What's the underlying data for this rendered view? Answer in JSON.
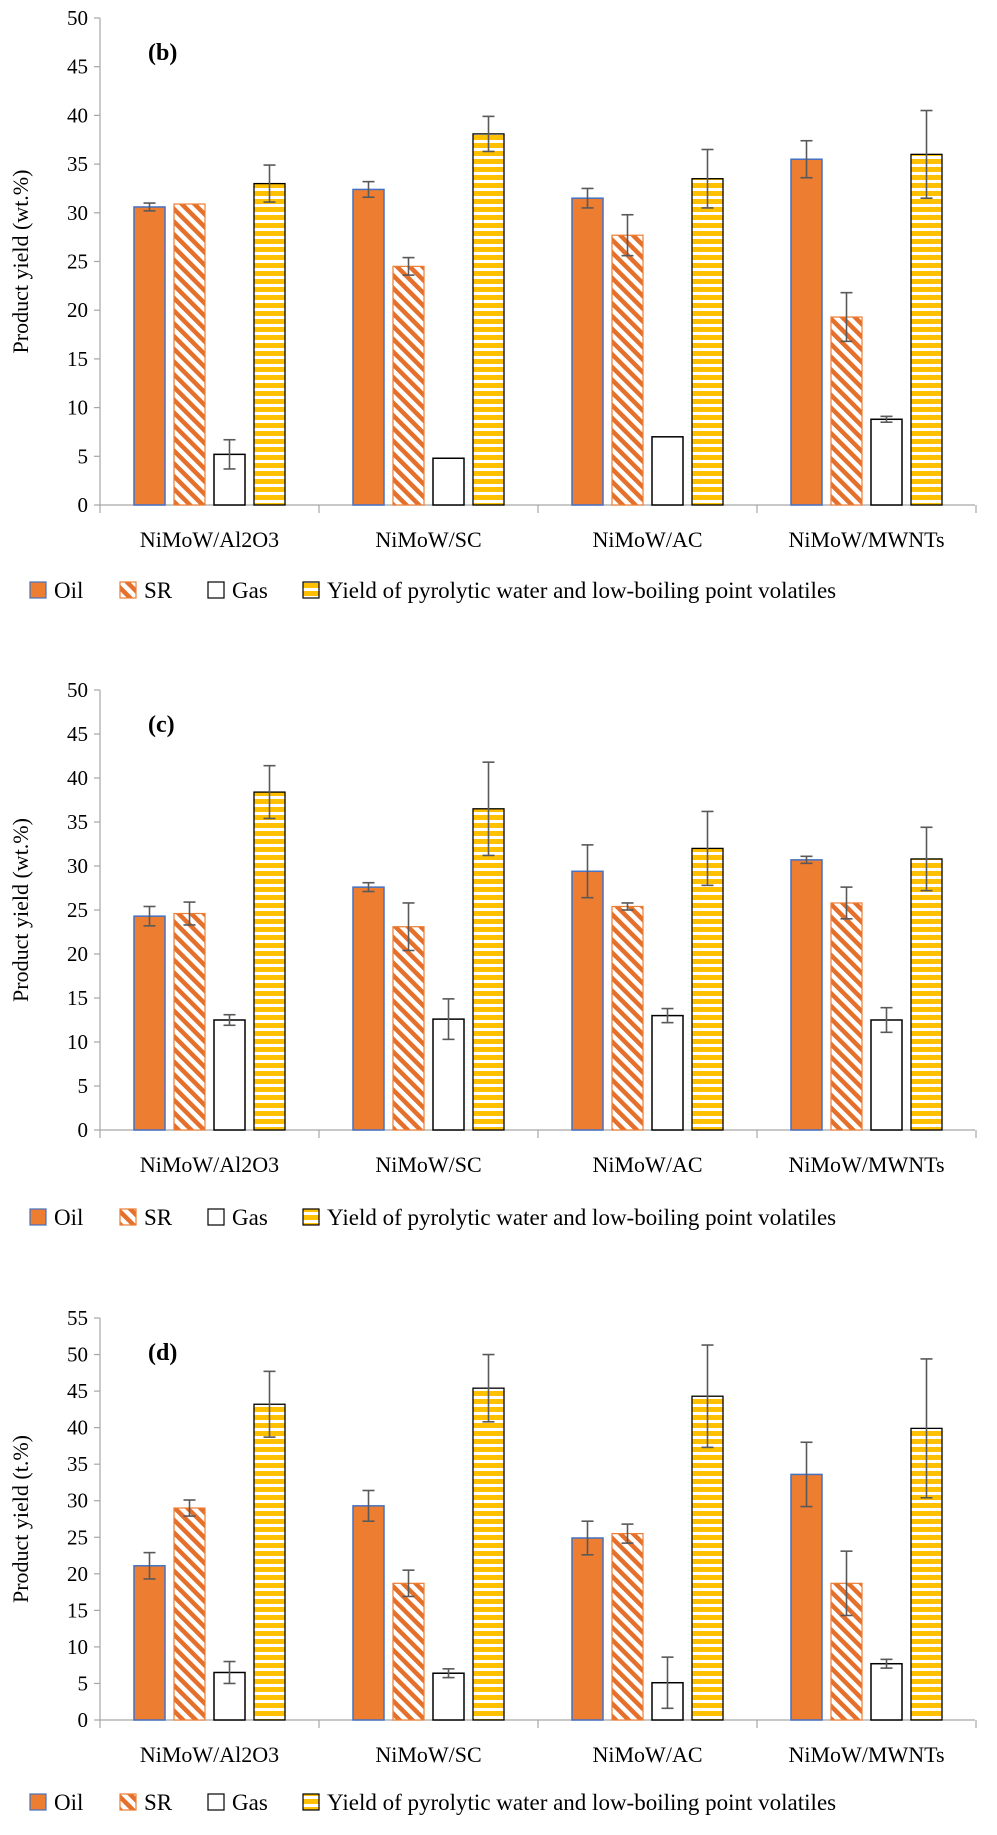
{
  "colors": {
    "oil_fill": "#ED7D31",
    "oil_stroke": "#4472C4",
    "sr_stripe": "#E5702B",
    "gas_fill": "#FFFFFF",
    "gas_stroke": "#000000",
    "water_fill": "#FFC000",
    "water_stripe": "#FFFFFF",
    "water_stroke": "#000000",
    "axis": "#A6A6A6",
    "error_bar": "#595959"
  },
  "chart_data": [
    {
      "type": "bar",
      "panel": "(b)",
      "title": "",
      "ylabel": "Product yield (wt.%)",
      "xlabel": "",
      "ylim": [
        0,
        50
      ],
      "ystep": 5,
      "categories": [
        "NiMoW/Al2O3",
        "NiMoW/SC",
        "NiMoW/AC",
        "NiMoW/MWNTs"
      ],
      "series": [
        {
          "name": "Oil",
          "key": "oil",
          "values": [
            30.6,
            32.4,
            31.5,
            35.5
          ],
          "errors": [
            0.4,
            0.8,
            1.0,
            1.9
          ]
        },
        {
          "name": "SR",
          "key": "sr",
          "values": [
            30.9,
            24.5,
            27.7,
            19.3
          ],
          "errors": [
            0.0,
            0.9,
            2.1,
            2.5
          ]
        },
        {
          "name": "Gas",
          "key": "gas",
          "values": [
            5.2,
            4.8,
            7.0,
            8.8
          ],
          "errors": [
            1.5,
            0.0,
            0.0,
            0.3
          ]
        },
        {
          "name": "Yield of pyrolytic water and low-boiling point volatiles",
          "key": "water",
          "values": [
            33.0,
            38.1,
            33.5,
            36.0
          ],
          "errors": [
            1.9,
            1.8,
            3.0,
            4.5
          ]
        }
      ],
      "legend": "bottom"
    },
    {
      "type": "bar",
      "panel": "(c)",
      "title": "",
      "ylabel": "Product yield (wt.%)",
      "xlabel": "",
      "ylim": [
        0,
        50
      ],
      "ystep": 5,
      "categories": [
        "NiMoW/Al2O3",
        "NiMoW/SC",
        "NiMoW/AC",
        "NiMoW/MWNTs"
      ],
      "series": [
        {
          "name": "Oil",
          "key": "oil",
          "values": [
            24.3,
            27.6,
            29.4,
            30.7
          ],
          "errors": [
            1.1,
            0.5,
            3.0,
            0.4
          ]
        },
        {
          "name": "SR",
          "key": "sr",
          "values": [
            24.6,
            23.1,
            25.4,
            25.8
          ],
          "errors": [
            1.3,
            2.7,
            0.4,
            1.8
          ]
        },
        {
          "name": "Gas",
          "key": "gas",
          "values": [
            12.5,
            12.6,
            13.0,
            12.5
          ],
          "errors": [
            0.6,
            2.3,
            0.8,
            1.4
          ]
        },
        {
          "name": "Yield of pyrolytic water and low-boiling point volatiles",
          "key": "water",
          "values": [
            38.4,
            36.5,
            32.0,
            30.8
          ],
          "errors": [
            3.0,
            5.3,
            4.2,
            3.6
          ]
        }
      ],
      "legend": "bottom"
    },
    {
      "type": "bar",
      "panel": "(d)",
      "title": "",
      "ylabel": "Product yield (t.%)",
      "xlabel": "",
      "ylim": [
        0,
        55
      ],
      "ystep": 5,
      "categories": [
        "NiMoW/Al2O3",
        "NiMoW/SC",
        "NiMoW/AC",
        "NiMoW/MWNTs"
      ],
      "series": [
        {
          "name": "Oil",
          "key": "oil",
          "values": [
            21.1,
            29.3,
            24.9,
            33.6
          ],
          "errors": [
            1.8,
            2.1,
            2.3,
            4.4
          ]
        },
        {
          "name": "SR",
          "key": "sr",
          "values": [
            29.0,
            18.7,
            25.5,
            18.7
          ],
          "errors": [
            1.1,
            1.8,
            1.3,
            4.4
          ]
        },
        {
          "name": "Gas",
          "key": "gas",
          "values": [
            6.5,
            6.4,
            5.1,
            7.7
          ],
          "errors": [
            1.5,
            0.6,
            3.5,
            0.6
          ]
        },
        {
          "name": "Yield of pyrolytic water and low-boiling point volatiles",
          "key": "water",
          "values": [
            43.2,
            45.4,
            44.3,
            39.9
          ],
          "errors": [
            4.5,
            4.6,
            7.0,
            9.5
          ]
        }
      ],
      "legend": "bottom"
    }
  ]
}
